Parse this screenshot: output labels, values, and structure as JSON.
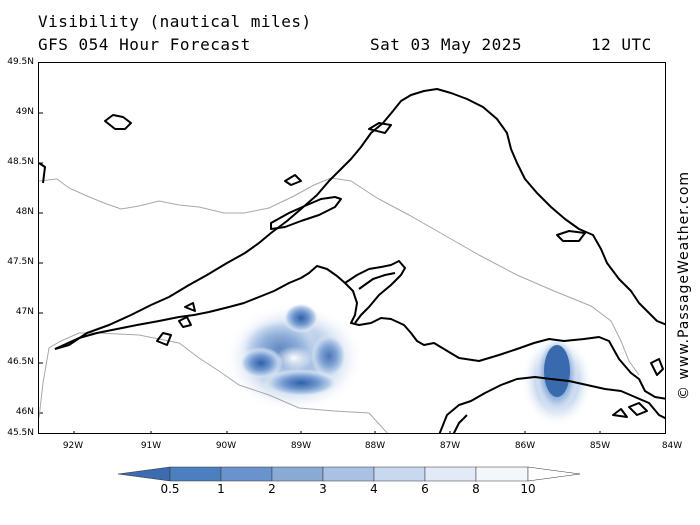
{
  "header": {
    "title": "Visibility (nautical miles)",
    "forecast": "GFS 054 Hour Forecast",
    "date": "Sat 03 May 2025",
    "time": "12 UTC"
  },
  "map": {
    "lat_labels": [
      "49.5N",
      "49N",
      "48.5N",
      "48N",
      "47.5N",
      "47N",
      "46.5N",
      "46N",
      "45.5N"
    ],
    "lon_labels": [
      "92W",
      "91W",
      "90W",
      "89W",
      "88W",
      "87W",
      "86W",
      "85W",
      "84W"
    ],
    "region": "Lake Superior",
    "visibility_fields": [
      {
        "name": "western-keweenaw-fog",
        "center_lat": 46.55,
        "center_lon": -89.1,
        "min_visibility_nm": 1
      },
      {
        "name": "eastern-upper-peninsula-fog",
        "center_lat": 46.2,
        "center_lon": -85.7,
        "min_visibility_nm": 0.5
      }
    ]
  },
  "credit": "© www.PassageWeather.com",
  "legend": {
    "labels": [
      "0.5",
      "1",
      "2",
      "3",
      "4",
      "6",
      "8",
      "10"
    ],
    "colors": [
      "#3c6bb0",
      "#4b7fc0",
      "#6993cc",
      "#8aaad6",
      "#a9c1e2",
      "#c8d8ee",
      "#e1eaf6",
      "#f3f7fc"
    ]
  },
  "colors": {
    "land_outline": "#000000",
    "border": "#a0a0a0",
    "fog_dark": "#2f5fa8",
    "fog_light": "#d6e3f3"
  }
}
